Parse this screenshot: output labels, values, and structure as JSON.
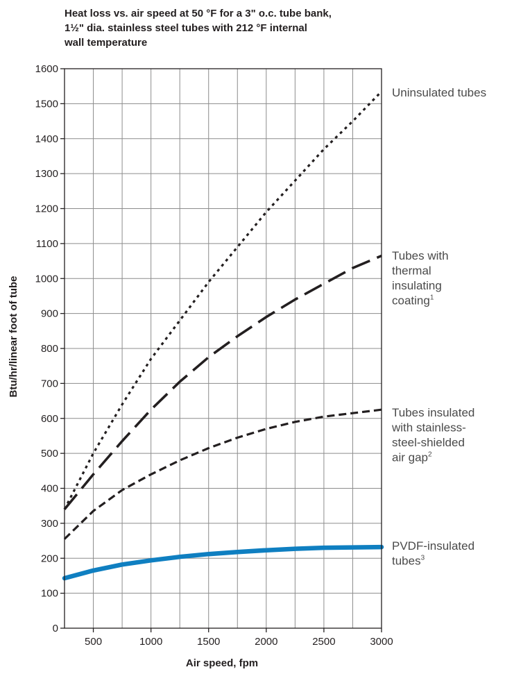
{
  "chart_data": {
    "type": "line",
    "title_lines": [
      "Heat loss vs. air speed at 50 °F for a 3\" o.c. tube bank,",
      "1½\" dia. stainless steel tubes with 212 °F internal",
      "wall temperature"
    ],
    "xlabel": "Air speed, fpm",
    "ylabel": "Btu/hr/linear foot of tube",
    "xlim": [
      250,
      3000
    ],
    "ylim": [
      0,
      1600
    ],
    "x_ticks": [
      500,
      1000,
      1500,
      2000,
      2500,
      3000
    ],
    "y_ticks": [
      0,
      100,
      200,
      300,
      400,
      500,
      600,
      700,
      800,
      900,
      1000,
      1100,
      1200,
      1300,
      1400,
      1500,
      1600
    ],
    "grid": true,
    "series": [
      {
        "name": "Uninsulated tubes",
        "label_lines": [
          "Uninsulated tubes"
        ],
        "label_sup": "",
        "line_style": "dotted",
        "color": "#231f20",
        "x": [
          250,
          500,
          750,
          1000,
          1250,
          1500,
          1750,
          2000,
          2250,
          2500,
          2750,
          3000
        ],
        "y": [
          340,
          500,
          640,
          770,
          880,
          990,
          1090,
          1190,
          1280,
          1370,
          1450,
          1535
        ]
      },
      {
        "name": "Tubes with thermal insulating coating",
        "label_lines": [
          "Tubes with",
          "thermal",
          "insulating",
          "coating"
        ],
        "label_sup": "1",
        "line_style": "long-dash",
        "color": "#231f20",
        "x": [
          250,
          500,
          750,
          1000,
          1250,
          1500,
          1750,
          2000,
          2250,
          2500,
          2750,
          3000
        ],
        "y": [
          340,
          440,
          535,
          625,
          705,
          775,
          835,
          890,
          940,
          985,
          1030,
          1065
        ]
      },
      {
        "name": "Tubes insulated with stainless-steel-shielded air gap",
        "label_lines": [
          "Tubes insulated",
          "with stainless-",
          "steel-shielded",
          "air gap"
        ],
        "label_sup": "2",
        "line_style": "dashed",
        "color": "#231f20",
        "x": [
          250,
          500,
          750,
          1000,
          1250,
          1500,
          1750,
          2000,
          2250,
          2500,
          2750,
          3000
        ],
        "y": [
          255,
          335,
          395,
          440,
          480,
          515,
          545,
          570,
          590,
          605,
          615,
          625
        ]
      },
      {
        "name": "PVDF-insulated tubes",
        "label_lines": [
          "PVDF-insulated",
          "tubes"
        ],
        "label_sup": "3",
        "line_style": "solid-thick",
        "color": "#0f7fc1",
        "x": [
          250,
          500,
          750,
          1000,
          1250,
          1500,
          1750,
          2000,
          2250,
          2500,
          2750,
          3000
        ],
        "y": [
          143,
          165,
          182,
          194,
          204,
          212,
          218,
          223,
          227,
          230,
          231,
          232
        ]
      }
    ]
  }
}
